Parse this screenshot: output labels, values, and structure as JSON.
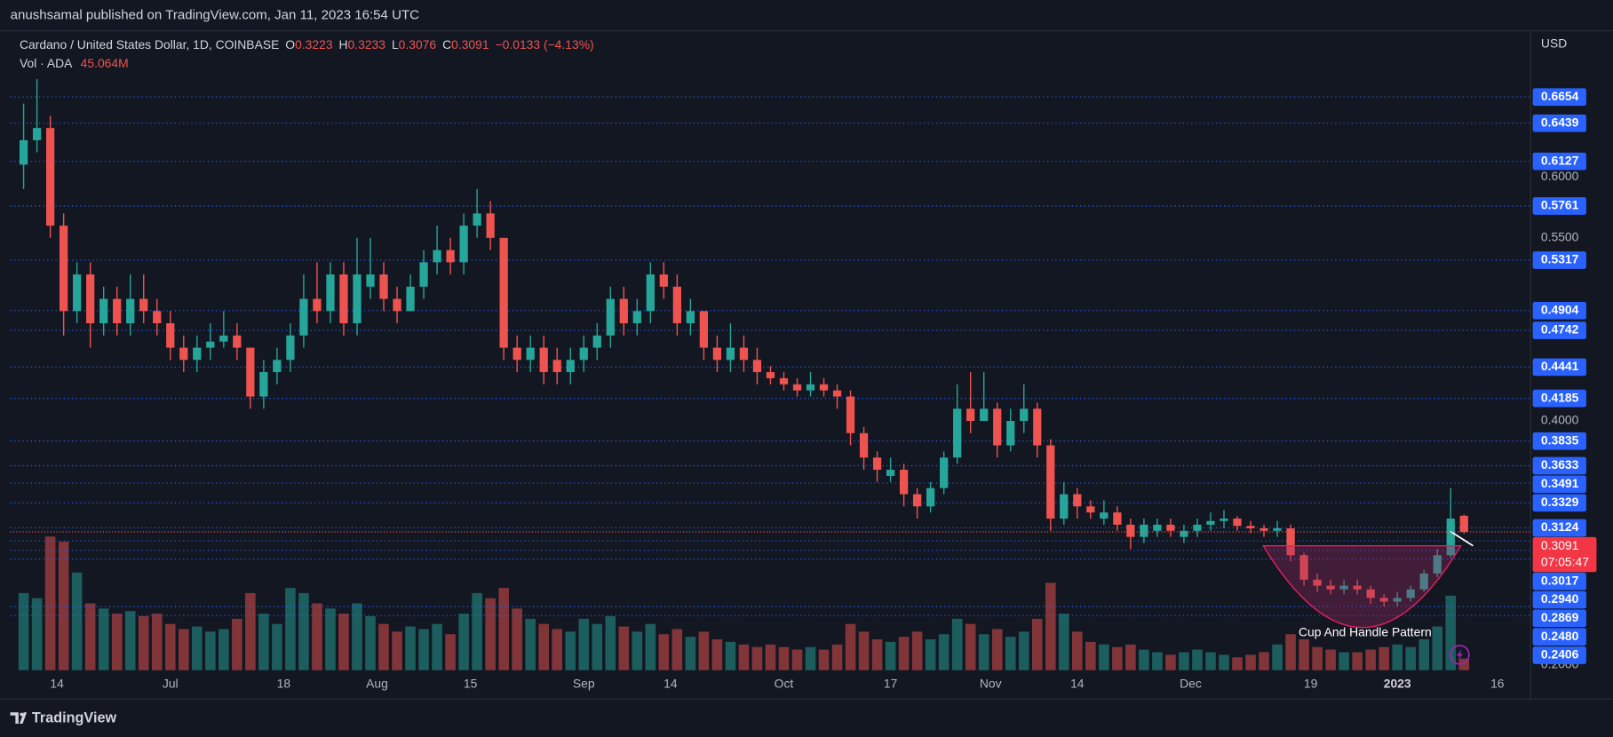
{
  "header": {
    "published": "anushsamal published on TradingView.com, Jan 11, 2023 16:54 UTC"
  },
  "footer": {
    "brand": "TradingView"
  },
  "chart_data": {
    "type": "candlestick",
    "currency": "USD",
    "legend": {
      "symbol": "Cardano / United States Dollar, 1D, COINBASE",
      "open_label": "O",
      "high_label": "H",
      "low_label": "L",
      "close_label": "C",
      "change": "−0.0133 (−4.13%)",
      "volume_label": "Vol · ADA",
      "volume": "45.064M"
    },
    "countdown": "07:05:47",
    "annotation": "Cup And Handle Pattern",
    "colors": {
      "up": "#26a69a",
      "down": "#ef5350",
      "level": "#2962ff"
    },
    "xlim": [
      "2022-06-07",
      "2023-01-21"
    ],
    "xticks": [
      {
        "value": "2022-06-14",
        "label": "14"
      },
      {
        "value": "2022-07-01",
        "label": "Jul"
      },
      {
        "value": "2022-07-18",
        "label": "18"
      },
      {
        "value": "2022-08-01",
        "label": "Aug"
      },
      {
        "value": "2022-08-15",
        "label": "15"
      },
      {
        "value": "2022-09-01",
        "label": "Sep"
      },
      {
        "value": "2022-09-14",
        "label": "14"
      },
      {
        "value": "2022-10-01",
        "label": "Oct"
      },
      {
        "value": "2022-10-17",
        "label": "17"
      },
      {
        "value": "2022-11-01",
        "label": "Nov"
      },
      {
        "value": "2022-11-14",
        "label": "14"
      },
      {
        "value": "2022-12-01",
        "label": "Dec"
      },
      {
        "value": "2022-12-19",
        "label": "19"
      },
      {
        "value": "2023-01-01",
        "label": "2023"
      },
      {
        "value": "2023-01-16",
        "label": "16"
      }
    ],
    "ylim": [
      0.1958,
      0.7196
    ],
    "yticks": [
      {
        "value": 0.2,
        "label": "0.2000"
      },
      {
        "value": 0.4,
        "label": "0.4000"
      },
      {
        "value": 0.55,
        "label": "0.5500"
      },
      {
        "value": 0.6,
        "label": "0.6000"
      }
    ],
    "grid": false,
    "levels": [
      0.6654,
      0.6439,
      0.6127,
      0.5761,
      0.5317,
      0.4904,
      0.4742,
      0.4441,
      0.4185,
      0.3835,
      0.3633,
      0.3491,
      0.3329,
      0.3124,
      0.3017,
      {
        "value": 0.294,
        "label": "0.2940"
      },
      0.2869,
      {
        "value": 0.248,
        "label": "0.2480"
      },
      0.2406
    ],
    "volume_lim": [
      0,
      700
    ],
    "x": [
      "2022-06-09",
      "2022-06-11",
      "2022-06-13",
      "2022-06-15",
      "2022-06-17",
      "2022-06-19",
      "2022-06-21",
      "2022-06-23",
      "2022-06-25",
      "2022-06-27",
      "2022-06-29",
      "2022-07-01",
      "2022-07-03",
      "2022-07-05",
      "2022-07-07",
      "2022-07-09",
      "2022-07-11",
      "2022-07-13",
      "2022-07-15",
      "2022-07-17",
      "2022-07-19",
      "2022-07-21",
      "2022-07-23",
      "2022-07-25",
      "2022-07-27",
      "2022-07-29",
      "2022-07-31",
      "2022-08-02",
      "2022-08-04",
      "2022-08-06",
      "2022-08-08",
      "2022-08-10",
      "2022-08-12",
      "2022-08-14",
      "2022-08-16",
      "2022-08-18",
      "2022-08-20",
      "2022-08-22",
      "2022-08-24",
      "2022-08-26",
      "2022-08-28",
      "2022-08-30",
      "2022-09-01",
      "2022-09-03",
      "2022-09-05",
      "2022-09-07",
      "2022-09-09",
      "2022-09-11",
      "2022-09-13",
      "2022-09-15",
      "2022-09-17",
      "2022-09-19",
      "2022-09-21",
      "2022-09-23",
      "2022-09-25",
      "2022-09-27",
      "2022-09-29",
      "2022-10-01",
      "2022-10-03",
      "2022-10-05",
      "2022-10-07",
      "2022-10-09",
      "2022-10-11",
      "2022-10-13",
      "2022-10-15",
      "2022-10-17",
      "2022-10-19",
      "2022-10-21",
      "2022-10-23",
      "2022-10-25",
      "2022-10-27",
      "2022-10-29",
      "2022-10-31",
      "2022-11-02",
      "2022-11-04",
      "2022-11-06",
      "2022-11-08",
      "2022-11-10",
      "2022-11-12",
      "2022-11-14",
      "2022-11-16",
      "2022-11-18",
      "2022-11-20",
      "2022-11-22",
      "2022-11-24",
      "2022-11-26",
      "2022-11-28",
      "2022-11-30",
      "2022-12-02",
      "2022-12-04",
      "2022-12-06",
      "2022-12-08",
      "2022-12-10",
      "2022-12-12",
      "2022-12-14",
      "2022-12-16",
      "2022-12-18",
      "2022-12-20",
      "2022-12-22",
      "2022-12-24",
      "2022-12-26",
      "2022-12-28",
      "2022-12-30",
      "2023-01-01",
      "2023-01-03",
      "2023-01-05",
      "2023-01-07",
      "2023-01-09",
      "2023-01-11"
    ],
    "open": [
      0.61,
      0.63,
      0.64,
      0.56,
      0.49,
      0.52,
      0.48,
      0.5,
      0.48,
      0.5,
      0.49,
      0.48,
      0.46,
      0.45,
      0.46,
      0.465,
      0.47,
      0.46,
      0.42,
      0.44,
      0.45,
      0.47,
      0.5,
      0.49,
      0.52,
      0.48,
      0.51,
      0.52,
      0.5,
      0.49,
      0.51,
      0.53,
      0.54,
      0.53,
      0.56,
      0.57,
      0.55,
      0.46,
      0.45,
      0.46,
      0.45,
      0.44,
      0.45,
      0.46,
      0.47,
      0.5,
      0.48,
      0.49,
      0.52,
      0.51,
      0.48,
      0.49,
      0.46,
      0.45,
      0.46,
      0.45,
      0.44,
      0.435,
      0.43,
      0.425,
      0.43,
      0.425,
      0.42,
      0.39,
      0.37,
      0.355,
      0.36,
      0.34,
      0.33,
      0.345,
      0.37,
      0.41,
      0.4,
      0.41,
      0.38,
      0.4,
      0.41,
      0.38,
      0.32,
      0.34,
      0.33,
      0.32,
      0.325,
      0.315,
      0.305,
      0.31,
      0.315,
      0.305,
      0.31,
      0.315,
      0.318,
      0.32,
      0.314,
      0.312,
      0.31,
      0.312,
      0.29,
      0.27,
      0.265,
      0.262,
      0.265,
      0.262,
      0.255,
      0.252,
      0.255,
      0.262,
      0.275,
      0.29,
      0.3223
    ],
    "high": [
      0.66,
      0.68,
      0.65,
      0.57,
      0.53,
      0.53,
      0.51,
      0.51,
      0.52,
      0.52,
      0.5,
      0.49,
      0.47,
      0.47,
      0.48,
      0.49,
      0.48,
      0.46,
      0.45,
      0.46,
      0.48,
      0.52,
      0.53,
      0.53,
      0.53,
      0.55,
      0.55,
      0.53,
      0.51,
      0.52,
      0.54,
      0.56,
      0.55,
      0.57,
      0.59,
      0.58,
      0.55,
      0.47,
      0.47,
      0.47,
      0.46,
      0.46,
      0.47,
      0.48,
      0.51,
      0.51,
      0.5,
      0.53,
      0.53,
      0.52,
      0.5,
      0.49,
      0.47,
      0.48,
      0.47,
      0.46,
      0.445,
      0.44,
      0.435,
      0.44,
      0.435,
      0.43,
      0.425,
      0.395,
      0.375,
      0.37,
      0.365,
      0.345,
      0.35,
      0.375,
      0.43,
      0.44,
      0.44,
      0.415,
      0.41,
      0.43,
      0.415,
      0.385,
      0.35,
      0.345,
      0.335,
      0.335,
      0.33,
      0.32,
      0.32,
      0.32,
      0.32,
      0.315,
      0.32,
      0.325,
      0.327,
      0.322,
      0.318,
      0.315,
      0.318,
      0.315,
      0.292,
      0.275,
      0.27,
      0.27,
      0.27,
      0.265,
      0.258,
      0.26,
      0.265,
      0.278,
      0.295,
      0.345,
      0.3233
    ],
    "low": [
      0.59,
      0.62,
      0.55,
      0.47,
      0.48,
      0.46,
      0.47,
      0.47,
      0.47,
      0.48,
      0.47,
      0.45,
      0.44,
      0.44,
      0.45,
      0.46,
      0.45,
      0.41,
      0.41,
      0.43,
      0.44,
      0.46,
      0.48,
      0.48,
      0.47,
      0.47,
      0.5,
      0.49,
      0.48,
      0.49,
      0.5,
      0.52,
      0.52,
      0.52,
      0.55,
      0.54,
      0.45,
      0.44,
      0.44,
      0.43,
      0.43,
      0.43,
      0.44,
      0.45,
      0.46,
      0.47,
      0.47,
      0.48,
      0.5,
      0.47,
      0.47,
      0.45,
      0.44,
      0.44,
      0.44,
      0.43,
      0.43,
      0.425,
      0.42,
      0.42,
      0.42,
      0.41,
      0.38,
      0.36,
      0.35,
      0.35,
      0.33,
      0.32,
      0.325,
      0.34,
      0.365,
      0.39,
      0.4,
      0.37,
      0.375,
      0.39,
      0.37,
      0.31,
      0.315,
      0.32,
      0.32,
      0.315,
      0.31,
      0.295,
      0.3,
      0.305,
      0.305,
      0.3,
      0.305,
      0.31,
      0.312,
      0.31,
      0.308,
      0.305,
      0.305,
      0.285,
      0.265,
      0.26,
      0.258,
      0.258,
      0.258,
      0.25,
      0.248,
      0.248,
      0.252,
      0.26,
      0.272,
      0.288,
      0.3076
    ],
    "close": [
      0.63,
      0.64,
      0.56,
      0.49,
      0.52,
      0.48,
      0.5,
      0.48,
      0.5,
      0.49,
      0.48,
      0.46,
      0.45,
      0.46,
      0.465,
      0.47,
      0.46,
      0.42,
      0.44,
      0.45,
      0.47,
      0.5,
      0.49,
      0.52,
      0.48,
      0.52,
      0.52,
      0.5,
      0.49,
      0.51,
      0.53,
      0.54,
      0.53,
      0.56,
      0.57,
      0.55,
      0.46,
      0.45,
      0.46,
      0.44,
      0.44,
      0.45,
      0.46,
      0.47,
      0.5,
      0.48,
      0.49,
      0.52,
      0.51,
      0.48,
      0.49,
      0.46,
      0.45,
      0.46,
      0.45,
      0.44,
      0.435,
      0.43,
      0.425,
      0.43,
      0.425,
      0.42,
      0.39,
      0.37,
      0.36,
      0.36,
      0.34,
      0.33,
      0.345,
      0.37,
      0.41,
      0.4,
      0.41,
      0.38,
      0.4,
      0.41,
      0.38,
      0.32,
      0.34,
      0.33,
      0.325,
      0.325,
      0.315,
      0.305,
      0.315,
      0.315,
      0.31,
      0.31,
      0.315,
      0.318,
      0.32,
      0.314,
      0.312,
      0.31,
      0.312,
      0.29,
      0.27,
      0.265,
      0.262,
      0.265,
      0.262,
      0.255,
      0.252,
      0.255,
      0.262,
      0.275,
      0.29,
      0.32,
      0.3091
    ],
    "volume": [
      300,
      280,
      520,
      500,
      380,
      260,
      240,
      220,
      230,
      210,
      220,
      180,
      160,
      170,
      150,
      160,
      200,
      300,
      220,
      180,
      320,
      300,
      260,
      240,
      220,
      260,
      210,
      180,
      150,
      170,
      160,
      180,
      140,
      220,
      300,
      280,
      320,
      240,
      200,
      180,
      160,
      150,
      200,
      180,
      210,
      170,
      150,
      180,
      140,
      160,
      130,
      150,
      120,
      110,
      100,
      90,
      100,
      90,
      80,
      90,
      80,
      100,
      180,
      150,
      120,
      110,
      130,
      150,
      120,
      140,
      200,
      180,
      140,
      160,
      130,
      150,
      200,
      340,
      220,
      150,
      110,
      100,
      90,
      100,
      80,
      70,
      60,
      70,
      80,
      70,
      60,
      50,
      60,
      70,
      100,
      140,
      120,
      90,
      80,
      70,
      70,
      80,
      90,
      100,
      90,
      120,
      170,
      290,
      45.064
    ]
  }
}
